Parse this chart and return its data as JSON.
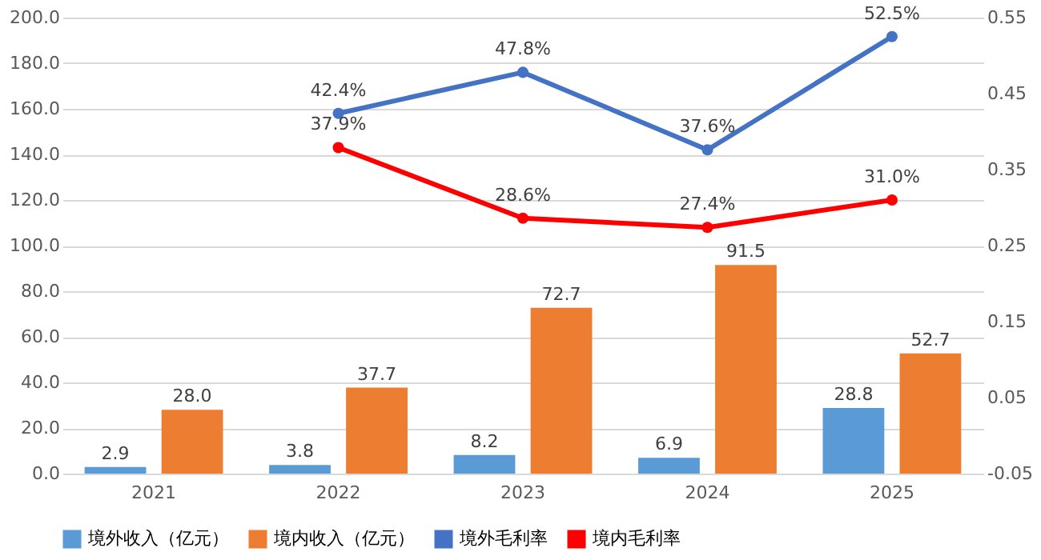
{
  "chart_data": {
    "type": "bar",
    "categories": [
      "2021",
      "2022",
      "2023",
      "2024",
      "2025"
    ],
    "series": [
      {
        "name": "境外收入（亿元）",
        "type": "bar",
        "color": "#5b9bd5",
        "values": [
          2.9,
          3.8,
          8.2,
          6.9,
          28.8
        ],
        "value_labels": [
          "2.9",
          "3.8",
          "8.2",
          "6.9",
          "28.8"
        ]
      },
      {
        "name": "境内收入（亿元）",
        "type": "bar",
        "color": "#ed7d31",
        "values": [
          28.0,
          37.7,
          72.7,
          91.5,
          52.7
        ],
        "value_labels": [
          "28.0",
          "37.7",
          "72.7",
          "91.5",
          "52.7"
        ]
      },
      {
        "name": "境外毛利率",
        "type": "line",
        "axis": "y2",
        "color": "#4472c4",
        "values": [
          null,
          0.424,
          0.478,
          0.376,
          0.525
        ],
        "value_labels": [
          null,
          "42.4%",
          "47.8%",
          "37.6%",
          "52.5%"
        ]
      },
      {
        "name": "境内毛利率",
        "type": "line",
        "axis": "y2",
        "color": "#ff0000",
        "values": [
          null,
          0.379,
          0.286,
          0.274,
          0.31
        ],
        "value_labels": [
          null,
          "37.9%",
          "28.6%",
          "27.4%",
          "31.0%"
        ]
      }
    ],
    "ylim": [
      0,
      200
    ],
    "yticks": [
      {
        "value": 0,
        "label": "0.0"
      },
      {
        "value": 20,
        "label": "20.0"
      },
      {
        "value": 40,
        "label": "40.0"
      },
      {
        "value": 60,
        "label": "60.0"
      },
      {
        "value": 80,
        "label": "80.0"
      },
      {
        "value": 100,
        "label": "100.0"
      },
      {
        "value": 120,
        "label": "120.0"
      },
      {
        "value": 140,
        "label": "140.0"
      },
      {
        "value": 160,
        "label": "160.0"
      },
      {
        "value": 180,
        "label": "180.0"
      },
      {
        "value": 200,
        "label": "200.0"
      }
    ],
    "y2lim": [
      -0.05,
      0.55
    ],
    "y2ticks": [
      -0.05,
      0.05,
      0.15,
      0.25,
      0.35,
      0.45,
      0.55
    ],
    "grid": "y",
    "legend": "bottom",
    "marker": "circle",
    "line_style": "solid"
  }
}
